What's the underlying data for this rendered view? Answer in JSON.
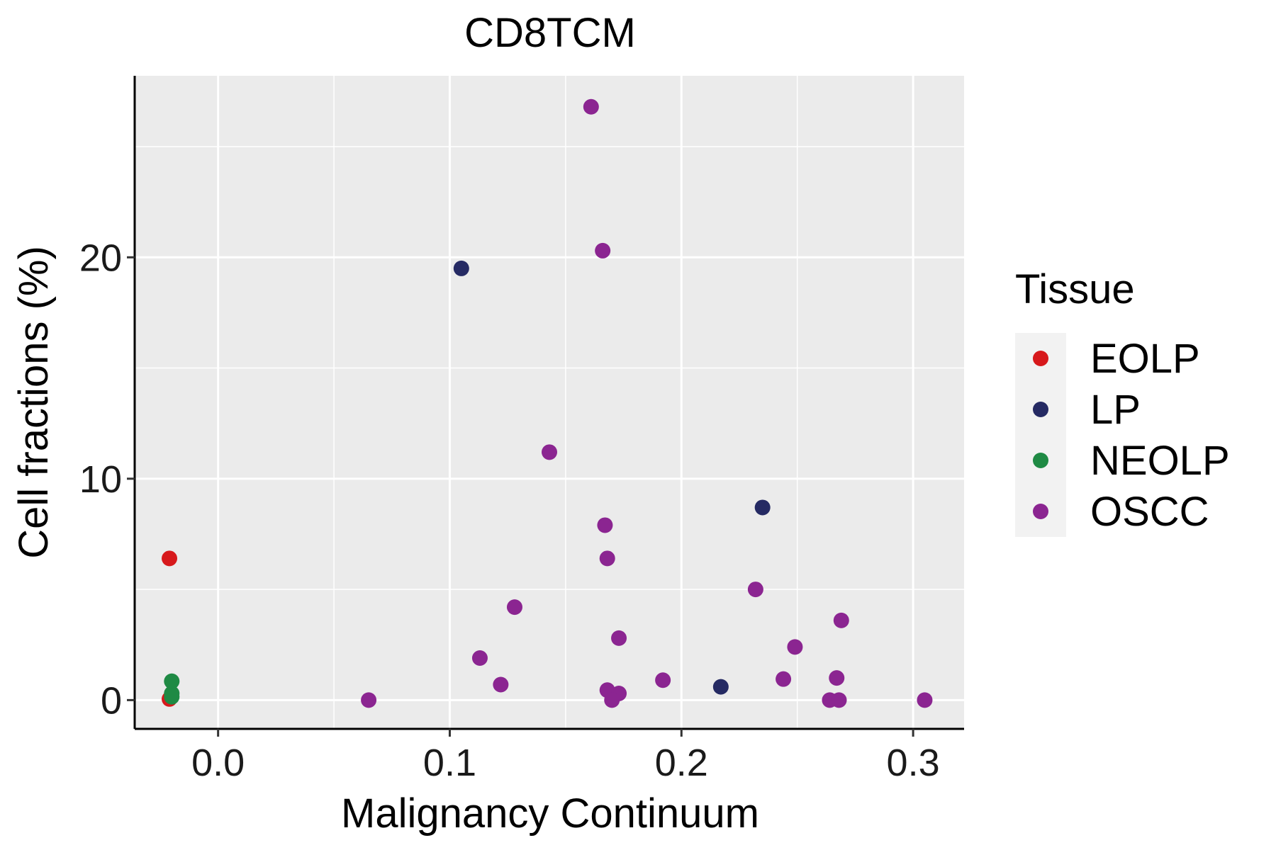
{
  "chart_data": {
    "type": "scatter",
    "title": "CD8TCM",
    "xlabel": "Malignancy Continuum",
    "ylabel": "Cell fractions (%)",
    "xlim": [
      -0.036,
      0.322
    ],
    "ylim": [
      -1.3,
      28.2
    ],
    "x_ticks": [
      0.0,
      0.1,
      0.2,
      0.3
    ],
    "x_tick_labels": [
      "0.0",
      "0.1",
      "0.2",
      "0.3"
    ],
    "y_ticks": [
      0,
      10,
      20
    ],
    "y_tick_labels": [
      "0",
      "10",
      "20"
    ],
    "x_minor_gridlines": [
      0.05,
      0.15,
      0.25
    ],
    "y_minor_gridlines": [
      5,
      15,
      25
    ],
    "grid": true,
    "panel_background": "#ebebeb",
    "legend": {
      "title": "Tissue",
      "position": "right",
      "entries": [
        {
          "label": "EOLP",
          "color": "#d7191c"
        },
        {
          "label": "LP",
          "color": "#252a63"
        },
        {
          "label": "NEOLP",
          "color": "#1f8a44"
        },
        {
          "label": "OSCC",
          "color": "#8b2591"
        }
      ]
    },
    "series": [
      {
        "name": "EOLP",
        "color": "#d7191c",
        "points": [
          {
            "x": -0.021,
            "y": 6.4
          },
          {
            "x": -0.021,
            "y": 0.05
          }
        ]
      },
      {
        "name": "LP",
        "color": "#252a63",
        "points": [
          {
            "x": 0.105,
            "y": 19.5
          },
          {
            "x": 0.235,
            "y": 8.7
          },
          {
            "x": 0.217,
            "y": 0.6
          }
        ]
      },
      {
        "name": "NEOLP",
        "color": "#1f8a44",
        "points": [
          {
            "x": -0.02,
            "y": 0.85
          },
          {
            "x": -0.02,
            "y": 0.3
          },
          {
            "x": -0.02,
            "y": 0.15
          }
        ]
      },
      {
        "name": "OSCC",
        "color": "#8b2591",
        "points": [
          {
            "x": 0.161,
            "y": 26.8
          },
          {
            "x": 0.166,
            "y": 20.3
          },
          {
            "x": 0.143,
            "y": 11.2
          },
          {
            "x": 0.167,
            "y": 7.9
          },
          {
            "x": 0.168,
            "y": 6.4
          },
          {
            "x": 0.128,
            "y": 4.2
          },
          {
            "x": 0.232,
            "y": 5.0
          },
          {
            "x": 0.269,
            "y": 3.6
          },
          {
            "x": 0.173,
            "y": 2.8
          },
          {
            "x": 0.249,
            "y": 2.4
          },
          {
            "x": 0.113,
            "y": 1.9
          },
          {
            "x": 0.122,
            "y": 0.7
          },
          {
            "x": 0.168,
            "y": 0.45
          },
          {
            "x": 0.173,
            "y": 0.3
          },
          {
            "x": 0.17,
            "y": 0.0
          },
          {
            "x": 0.192,
            "y": 0.9
          },
          {
            "x": 0.244,
            "y": 0.95
          },
          {
            "x": 0.267,
            "y": 1.0
          },
          {
            "x": 0.264,
            "y": 0.0
          },
          {
            "x": 0.268,
            "y": 0.0
          },
          {
            "x": 0.305,
            "y": 0.0
          },
          {
            "x": 0.065,
            "y": 0.0
          }
        ]
      }
    ]
  }
}
